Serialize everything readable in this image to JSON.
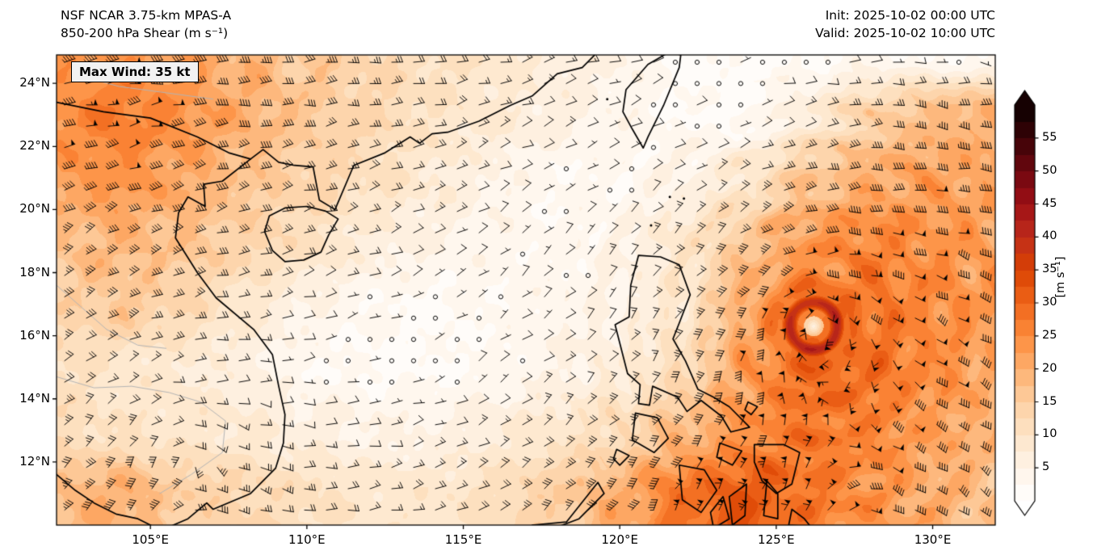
{
  "header": {
    "model_title": "NSF NCAR 3.75-km MPAS-A",
    "field_title": "850-200 hPa Shear (m s⁻¹)",
    "init_time": "Init: 2025-10-02 00:00 UTC",
    "valid_time": "Valid: 2025-10-02 10:00 UTC"
  },
  "annotation_box": {
    "label": "Max Wind: 35 kt"
  },
  "chart_data": {
    "type": "heatmap",
    "title": "NSF NCAR 3.75-km MPAS-A 850-200 hPa Shear (m s⁻¹)",
    "init": "2025-10-02 00:00 UTC",
    "valid": "2025-10-02 10:00 UTC",
    "annotation": "Max Wind: 35 kt",
    "x_tick_labels": [
      "105°E",
      "110°E",
      "115°E",
      "120°E",
      "125°E",
      "130°E"
    ],
    "x_tick_values": [
      105,
      110,
      115,
      120,
      125,
      130
    ],
    "y_tick_labels": [
      "12°N",
      "14°N",
      "16°N",
      "18°N",
      "20°N",
      "22°N",
      "24°N"
    ],
    "y_tick_values": [
      12,
      14,
      16,
      18,
      20,
      22,
      24
    ],
    "lon_range": [
      102.0,
      132.0
    ],
    "lat_range": [
      10.0,
      24.9
    ],
    "colorbar": {
      "label": "[m s⁻¹]",
      "tick_values": [
        5,
        10,
        15,
        20,
        25,
        30,
        35,
        40,
        45,
        50,
        55
      ],
      "value_range": [
        0,
        60
      ],
      "band_interval": 2.5,
      "extend": "both",
      "stops": [
        {
          "v": 0,
          "c": "#ffffff"
        },
        {
          "v": 5,
          "c": "#fff4e8"
        },
        {
          "v": 10,
          "c": "#fde5c8"
        },
        {
          "v": 15,
          "c": "#fdd0a3"
        },
        {
          "v": 20,
          "c": "#fdb070"
        },
        {
          "v": 25,
          "c": "#fd8c3c"
        },
        {
          "v": 30,
          "c": "#f0661b"
        },
        {
          "v": 35,
          "c": "#da4302"
        },
        {
          "v": 40,
          "c": "#c02d1c"
        },
        {
          "v": 45,
          "c": "#9e1016"
        },
        {
          "v": 50,
          "c": "#6f0710"
        },
        {
          "v": 55,
          "c": "#3a0307"
        },
        {
          "v": 60,
          "c": "#0a0101"
        }
      ]
    },
    "shear_grid": {
      "lons": [
        102,
        104,
        106,
        108,
        110,
        112,
        114,
        116,
        118,
        120,
        122,
        124,
        126,
        128,
        130,
        132
      ],
      "lats": [
        25,
        23,
        21,
        19,
        17,
        15,
        13,
        11
      ],
      "values": [
        [
          22,
          24,
          22,
          19,
          16,
          13,
          11,
          9,
          7,
          5,
          2,
          1.5,
          2,
          3,
          2,
          1.5
        ],
        [
          25,
          27,
          24,
          20,
          16,
          13,
          10,
          8,
          6,
          4,
          2.5,
          2,
          7,
          14,
          18,
          20
        ],
        [
          22,
          24,
          21,
          17,
          14,
          11,
          8,
          5,
          3,
          3,
          5,
          9,
          16,
          20,
          22,
          21
        ],
        [
          17,
          19,
          17,
          14,
          11,
          7,
          5,
          4,
          3,
          5,
          9,
          16,
          23,
          26,
          24,
          22
        ],
        [
          14,
          16,
          13,
          9,
          5,
          3,
          2,
          3,
          4,
          5,
          9,
          20,
          28,
          28,
          25,
          23
        ],
        [
          11,
          9,
          8,
          6,
          3,
          2,
          2,
          3,
          5,
          7,
          12,
          22,
          30,
          29,
          25,
          21
        ],
        [
          12,
          10,
          9,
          8,
          6,
          5,
          5,
          7,
          9,
          12,
          18,
          24,
          28,
          26,
          22,
          19
        ],
        [
          18,
          20,
          15,
          13,
          11,
          9,
          9,
          11,
          15,
          20,
          28,
          32,
          28,
          24,
          20,
          17
        ]
      ]
    },
    "cyclone": {
      "lon": 126.2,
      "lat": 16.3,
      "eye_shear": 7,
      "ring_shear": 41,
      "ring_radius_deg": 0.75
    },
    "weak_low": {
      "lon": 105.8,
      "lat": 13.0
    }
  }
}
